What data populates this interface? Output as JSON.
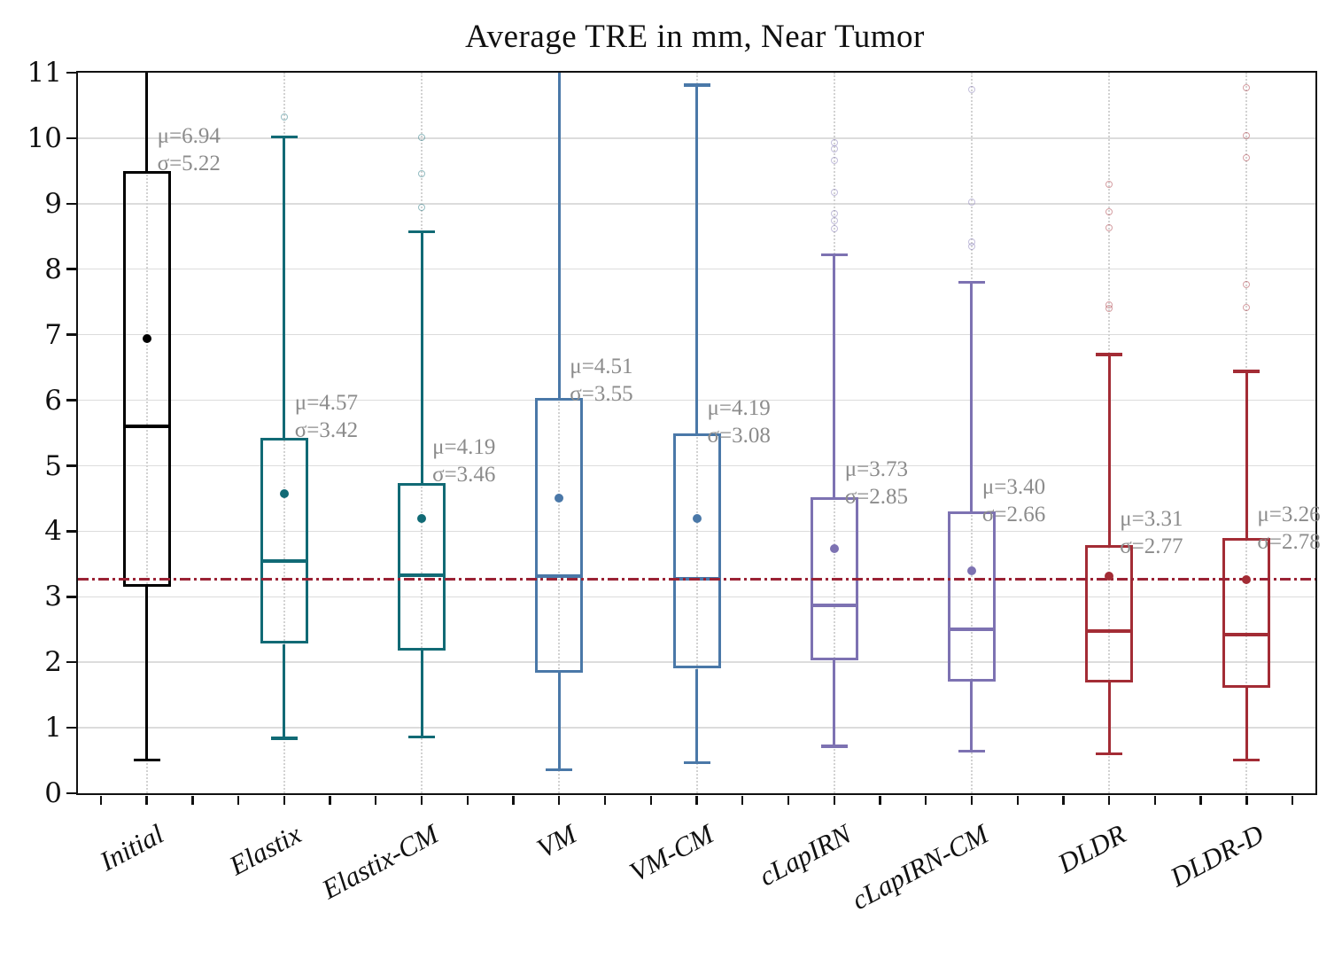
{
  "page": {
    "background": "#ffffff"
  },
  "chart_data": {
    "type": "box",
    "title": "Average TRE in mm, Near Tumor",
    "ylim": [
      0,
      11
    ],
    "yticks": [
      "0",
      "1",
      "2",
      "3",
      "4",
      "5",
      "6",
      "7",
      "8",
      "9",
      "10",
      "11"
    ],
    "grid": {
      "horizontal_solid": true,
      "vertical_dotted_at_categories": true
    },
    "legend": "none",
    "reference_line": {
      "value": 3.27,
      "color": "#9b2335",
      "style": "dash-dot"
    },
    "categories": [
      "Initial",
      "Elastix",
      "Elastix-CM",
      "VM",
      "VM-CM",
      "cLapIRN",
      "cLapIRN-CM",
      "DLDR",
      "DLDR-D"
    ],
    "series": [
      {
        "label": "Initial",
        "color": "#000000",
        "whisker_low": 0.51,
        "q1": 3.15,
        "median": 5.6,
        "q3": 9.5,
        "whisker_high": 11,
        "clipped_top": true,
        "mean": 6.94,
        "sd": 5.22,
        "mean_label": "μ=6.94",
        "sd_label": "σ=5.22",
        "annotation_anchor_value": 10.24,
        "outliers": []
      },
      {
        "label": "Elastix",
        "color": "#116a75",
        "whisker_low": 0.84,
        "q1": 2.28,
        "median": 3.55,
        "q3": 5.43,
        "whisker_high": 10.02,
        "clipped_top": false,
        "mean": 4.57,
        "sd": 3.42,
        "mean_label": "μ=4.57",
        "sd_label": "σ=3.42",
        "annotation_anchor_value": 6.17,
        "outliers": [
          10.32
        ]
      },
      {
        "label": "Elastix-CM",
        "color": "#116a75",
        "whisker_low": 0.86,
        "q1": 2.18,
        "median": 3.33,
        "q3": 4.74,
        "whisker_high": 8.57,
        "clipped_top": false,
        "mean": 4.19,
        "sd": 3.46,
        "mean_label": "μ=4.19",
        "sd_label": "σ=3.46",
        "annotation_anchor_value": 5.49,
        "outliers": [
          10.01,
          9.46,
          8.95
        ]
      },
      {
        "label": "VM",
        "color": "#4a78a8",
        "whisker_low": 0.36,
        "q1": 1.84,
        "median": 3.31,
        "q3": 6.04,
        "whisker_high": 11,
        "clipped_top": true,
        "mean": 4.51,
        "sd": 3.55,
        "mean_label": "μ=4.51",
        "sd_label": "σ=3.55",
        "annotation_anchor_value": 6.72,
        "outliers": []
      },
      {
        "label": "VM-CM",
        "color": "#4a78a8",
        "whisker_low": 0.47,
        "q1": 1.9,
        "median": 3.28,
        "q3": 5.49,
        "whisker_high": 10.81,
        "clipped_top": false,
        "mean": 4.19,
        "sd": 3.08,
        "mean_label": "μ=4.19",
        "sd_label": "σ=3.08",
        "annotation_anchor_value": 6.09,
        "outliers": []
      },
      {
        "label": "cLapIRN",
        "color": "#7d72b2",
        "whisker_low": 0.72,
        "q1": 2.03,
        "median": 2.87,
        "q3": 4.52,
        "whisker_high": 8.22,
        "clipped_top": false,
        "mean": 3.73,
        "sd": 2.85,
        "mean_label": "μ=3.73",
        "sd_label": "σ=2.85",
        "annotation_anchor_value": 5.15,
        "outliers": [
          9.93,
          9.84,
          9.66,
          9.17,
          8.85,
          8.74,
          8.62
        ]
      },
      {
        "label": "cLapIRN-CM",
        "color": "#7d72b2",
        "whisker_low": 0.64,
        "q1": 1.71,
        "median": 2.51,
        "q3": 4.3,
        "whisker_high": 7.8,
        "clipped_top": false,
        "mean": 3.4,
        "sd": 2.66,
        "mean_label": "μ=3.40",
        "sd_label": "σ=2.66",
        "annotation_anchor_value": 4.88,
        "outliers": [
          10.74,
          9.03,
          8.42,
          8.35
        ]
      },
      {
        "label": "DLDR",
        "color": "#a32c35",
        "whisker_low": 0.6,
        "q1": 1.69,
        "median": 2.47,
        "q3": 3.79,
        "whisker_high": 6.7,
        "clipped_top": false,
        "mean": 3.31,
        "sd": 2.77,
        "mean_label": "μ=3.31",
        "sd_label": "σ=2.77",
        "annotation_anchor_value": 4.4,
        "outliers": [
          9.3,
          8.88,
          8.63,
          7.46,
          7.4
        ]
      },
      {
        "label": "DLDR-D",
        "color": "#a32c35",
        "whisker_low": 0.51,
        "q1": 1.61,
        "median": 2.42,
        "q3": 3.9,
        "whisker_high": 6.44,
        "clipped_top": false,
        "mean": 3.26,
        "sd": 2.78,
        "mean_label": "μ=3.26",
        "sd_label": "σ=2.78",
        "annotation_anchor_value": 4.47,
        "outliers": [
          10.77,
          10.04,
          9.7,
          7.77,
          7.42
        ]
      }
    ]
  }
}
